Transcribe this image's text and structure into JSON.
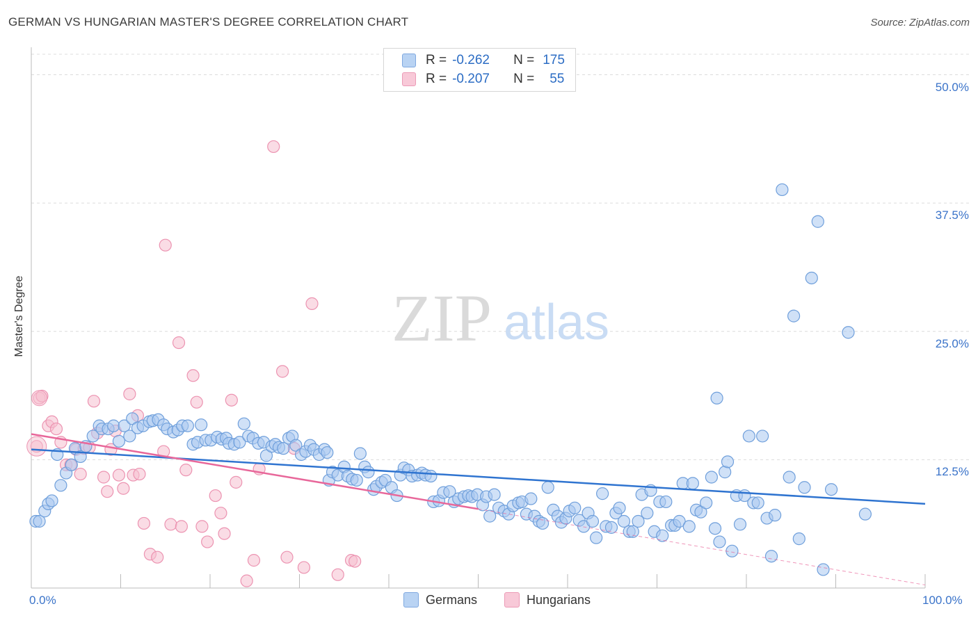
{
  "title": "GERMAN VS HUNGARIAN MASTER'S DEGREE CORRELATION CHART",
  "source": "Source: ZipAtlas.com",
  "watermark": {
    "zip": "ZIP",
    "atlas": "atlas"
  },
  "colors": {
    "blue_fill": "#a9c8f0",
    "blue_stroke": "#6f9fdb",
    "blue_line": "#2f74d0",
    "pink_fill": "#f6bfd0",
    "pink_stroke": "#ec93b1",
    "pink_line": "#e8679a",
    "axis_text": "#3a73c9",
    "grid": "#dcdcdc"
  },
  "legend": {
    "rows": [
      {
        "r_label": "R =",
        "r_value": "-0.262",
        "n_label": "N =",
        "n_value": "175"
      },
      {
        "r_label": "R =",
        "r_value": "-0.207",
        "n_label": "N =",
        "n_value": "55"
      }
    ]
  },
  "bottom_legend": {
    "germans": "Germans",
    "hungarians": "Hungarians"
  },
  "chart_data": {
    "type": "scatter",
    "ylabel": "Master's Degree",
    "xlim": [
      0,
      100
    ],
    "ylim": [
      0,
      52
    ],
    "x_tick_labels": {
      "left": "0.0%",
      "right": "100.0%"
    },
    "y_ticks": [
      12.5,
      25.0,
      37.5,
      50.0
    ],
    "y_tick_labels": [
      "12.5%",
      "25.0%",
      "37.5%",
      "50.0%"
    ],
    "series": [
      {
        "name": "Germans",
        "r": -0.262,
        "n": 175,
        "trend": {
          "x": [
            0,
            100
          ],
          "y": [
            13.5,
            8.2
          ]
        },
        "points": [
          [
            0.5,
            6.5
          ],
          [
            0.9,
            6.5
          ],
          [
            1.5,
            7.5
          ],
          [
            1.9,
            8.2
          ],
          [
            2.3,
            8.5
          ],
          [
            2.9,
            13
          ],
          [
            3.3,
            10
          ],
          [
            3.9,
            11.2
          ],
          [
            4.5,
            12
          ],
          [
            4.9,
            13.6
          ],
          [
            5.5,
            12.8
          ],
          [
            6.1,
            13.8
          ],
          [
            6.9,
            14.8
          ],
          [
            7.6,
            15.8
          ],
          [
            7.9,
            15.5
          ],
          [
            8.6,
            15.5
          ],
          [
            9.2,
            15.8
          ],
          [
            9.8,
            14.3
          ],
          [
            10.4,
            15.8
          ],
          [
            11,
            14.8
          ],
          [
            11.3,
            16.5
          ],
          [
            11.9,
            15.6
          ],
          [
            12.5,
            15.8
          ],
          [
            13.2,
            16.2
          ],
          [
            13.6,
            16.3
          ],
          [
            14.2,
            16.4
          ],
          [
            14.8,
            15.9
          ],
          [
            15.2,
            15.5
          ],
          [
            15.9,
            15.2
          ],
          [
            16.4,
            15.4
          ],
          [
            16.9,
            15.8
          ],
          [
            17.5,
            15.8
          ],
          [
            18.1,
            14.0
          ],
          [
            18.6,
            14.2
          ],
          [
            19.0,
            15.9
          ],
          [
            19.5,
            14.4
          ],
          [
            20.1,
            14.4
          ],
          [
            20.8,
            14.7
          ],
          [
            21.3,
            14.5
          ],
          [
            21.8,
            14.6
          ],
          [
            22.1,
            14.1
          ],
          [
            22.7,
            14.0
          ],
          [
            23.3,
            14.2
          ],
          [
            23.8,
            16.0
          ],
          [
            24.3,
            14.8
          ],
          [
            24.8,
            14.6
          ],
          [
            25.4,
            14.1
          ],
          [
            26.0,
            14.2
          ],
          [
            26.3,
            12.9
          ],
          [
            26.9,
            13.8
          ],
          [
            27.3,
            14.0
          ],
          [
            27.7,
            13.7
          ],
          [
            28.2,
            13.6
          ],
          [
            28.8,
            14.6
          ],
          [
            29.2,
            14.8
          ],
          [
            29.6,
            13.9
          ],
          [
            30.2,
            13.0
          ],
          [
            30.7,
            13.3
          ],
          [
            31.2,
            13.9
          ],
          [
            31.6,
            13.5
          ],
          [
            32.2,
            13.0
          ],
          [
            32.8,
            13.5
          ],
          [
            33.1,
            13.2
          ],
          [
            33.3,
            10.5
          ],
          [
            33.7,
            11.3
          ],
          [
            34.3,
            11.0
          ],
          [
            35.0,
            11.8
          ],
          [
            35.4,
            10.9
          ],
          [
            35.9,
            10.6
          ],
          [
            36.4,
            10.5
          ],
          [
            36.8,
            13.1
          ],
          [
            37.3,
            11.8
          ],
          [
            37.7,
            11.3
          ],
          [
            38.3,
            9.6
          ],
          [
            38.6,
            9.9
          ],
          [
            39.2,
            10.3
          ],
          [
            39.6,
            10.5
          ],
          [
            40.3,
            9.8
          ],
          [
            40.9,
            9.0
          ],
          [
            41.3,
            11.0
          ],
          [
            41.7,
            11.7
          ],
          [
            42.2,
            11.5
          ],
          [
            42.6,
            10.9
          ],
          [
            43.2,
            11.0
          ],
          [
            43.7,
            11.2
          ],
          [
            44.1,
            11.0
          ],
          [
            44.7,
            10.9
          ],
          [
            45.0,
            8.4
          ],
          [
            45.6,
            8.5
          ],
          [
            46.1,
            9.3
          ],
          [
            46.8,
            9.4
          ],
          [
            47.3,
            8.4
          ],
          [
            47.8,
            8.7
          ],
          [
            48.4,
            8.9
          ],
          [
            48.9,
            9.0
          ],
          [
            49.3,
            8.9
          ],
          [
            49.9,
            9.1
          ],
          [
            50.5,
            8.1
          ],
          [
            50.9,
            8.9
          ],
          [
            51.3,
            7.0
          ],
          [
            51.8,
            9.1
          ],
          [
            52.3,
            7.8
          ],
          [
            52.9,
            7.5
          ],
          [
            53.4,
            7.2
          ],
          [
            53.9,
            8.0
          ],
          [
            54.5,
            8.3
          ],
          [
            54.9,
            8.4
          ],
          [
            55.4,
            7.2
          ],
          [
            55.9,
            8.7
          ],
          [
            56.3,
            7.0
          ],
          [
            56.8,
            6.5
          ],
          [
            57.2,
            6.3
          ],
          [
            57.8,
            9.8
          ],
          [
            58.4,
            7.6
          ],
          [
            58.9,
            7.0
          ],
          [
            59.3,
            6.4
          ],
          [
            59.8,
            6.8
          ],
          [
            60.2,
            7.5
          ],
          [
            60.8,
            7.8
          ],
          [
            61.3,
            6.6
          ],
          [
            61.8,
            6.0
          ],
          [
            62.3,
            7.3
          ],
          [
            62.8,
            6.5
          ],
          [
            63.2,
            4.9
          ],
          [
            63.9,
            9.2
          ],
          [
            64.3,
            6.0
          ],
          [
            64.9,
            5.9
          ],
          [
            65.4,
            7.3
          ],
          [
            65.8,
            7.8
          ],
          [
            66.3,
            6.5
          ],
          [
            66.9,
            5.5
          ],
          [
            67.3,
            5.5
          ],
          [
            67.9,
            6.5
          ],
          [
            68.3,
            9.1
          ],
          [
            68.9,
            7.3
          ],
          [
            69.3,
            9.5
          ],
          [
            69.7,
            5.5
          ],
          [
            70.3,
            8.4
          ],
          [
            70.6,
            5.1
          ],
          [
            71.0,
            8.4
          ],
          [
            71.6,
            6.1
          ],
          [
            72.0,
            6.1
          ],
          [
            72.5,
            6.5
          ],
          [
            72.9,
            10.2
          ],
          [
            73.6,
            6.0
          ],
          [
            74.0,
            10.2
          ],
          [
            74.4,
            7.6
          ],
          [
            74.9,
            7.4
          ],
          [
            75.5,
            8.3
          ],
          [
            76.1,
            10.8
          ],
          [
            76.5,
            5.8
          ],
          [
            77.0,
            4.5
          ],
          [
            77.6,
            11.3
          ],
          [
            77.9,
            12.3
          ],
          [
            78.4,
            3.6
          ],
          [
            78.9,
            9.0
          ],
          [
            79.3,
            6.2
          ],
          [
            79.8,
            9.0
          ],
          [
            80.3,
            14.8
          ],
          [
            80.8,
            8.3
          ],
          [
            81.3,
            8.3
          ],
          [
            81.8,
            14.8
          ],
          [
            82.3,
            6.8
          ],
          [
            82.8,
            3.1
          ],
          [
            83.2,
            7.1
          ],
          [
            84.0,
            38.8
          ],
          [
            84.8,
            10.8
          ],
          [
            85.3,
            26.5
          ],
          [
            85.9,
            4.8
          ],
          [
            86.5,
            9.8
          ],
          [
            87.3,
            30.2
          ],
          [
            88.0,
            35.7
          ],
          [
            88.6,
            1.8
          ],
          [
            89.5,
            9.6
          ],
          [
            91.4,
            24.9
          ],
          [
            93.3,
            7.2
          ],
          [
            76.7,
            18.5
          ]
        ]
      },
      {
        "name": "Hungarians",
        "r": -0.207,
        "n": 55,
        "trend": {
          "x": [
            0,
            50
          ],
          "y": [
            15.0,
            7.7
          ]
        },
        "trend_extension": {
          "x": [
            50,
            100
          ],
          "y": [
            7.7,
            0.3
          ]
        },
        "points": [
          [
            0.6,
            13.8
          ],
          [
            0.9,
            18.5
          ],
          [
            1.2,
            18.7
          ],
          [
            1.9,
            15.8
          ],
          [
            2.3,
            16.2
          ],
          [
            2.8,
            15.5
          ],
          [
            3.3,
            14.2
          ],
          [
            3.9,
            12.0
          ],
          [
            4.4,
            12.0
          ],
          [
            5.0,
            13.5
          ],
          [
            5.5,
            11.1
          ],
          [
            5.9,
            13.6
          ],
          [
            6.5,
            13.7
          ],
          [
            7.0,
            18.2
          ],
          [
            7.4,
            15.1
          ],
          [
            8.1,
            10.8
          ],
          [
            8.5,
            9.4
          ],
          [
            8.9,
            13.5
          ],
          [
            9.4,
            15.3
          ],
          [
            9.8,
            11.0
          ],
          [
            10.3,
            9.7
          ],
          [
            11.0,
            18.9
          ],
          [
            11.4,
            11.0
          ],
          [
            11.9,
            16.8
          ],
          [
            12.1,
            11.1
          ],
          [
            12.6,
            6.3
          ],
          [
            13.3,
            3.3
          ],
          [
            14.1,
            3.0
          ],
          [
            14.8,
            13.3
          ],
          [
            15.0,
            33.4
          ],
          [
            15.6,
            6.2
          ],
          [
            16.5,
            23.9
          ],
          [
            16.8,
            6.0
          ],
          [
            17.3,
            11.5
          ],
          [
            18.1,
            20.7
          ],
          [
            18.5,
            18.1
          ],
          [
            19.1,
            6.0
          ],
          [
            19.7,
            4.5
          ],
          [
            20.6,
            9.0
          ],
          [
            21.2,
            7.3
          ],
          [
            21.6,
            5.3
          ],
          [
            22.4,
            18.3
          ],
          [
            22.9,
            10.3
          ],
          [
            24.1,
            0.7
          ],
          [
            24.9,
            2.7
          ],
          [
            25.5,
            11.6
          ],
          [
            27.1,
            43.0
          ],
          [
            28.1,
            21.1
          ],
          [
            28.6,
            3.0
          ],
          [
            29.4,
            13.6
          ],
          [
            30.5,
            2.0
          ],
          [
            31.4,
            27.7
          ],
          [
            34.3,
            1.3
          ],
          [
            35.8,
            2.7
          ],
          [
            36.2,
            2.6
          ]
        ]
      }
    ]
  }
}
